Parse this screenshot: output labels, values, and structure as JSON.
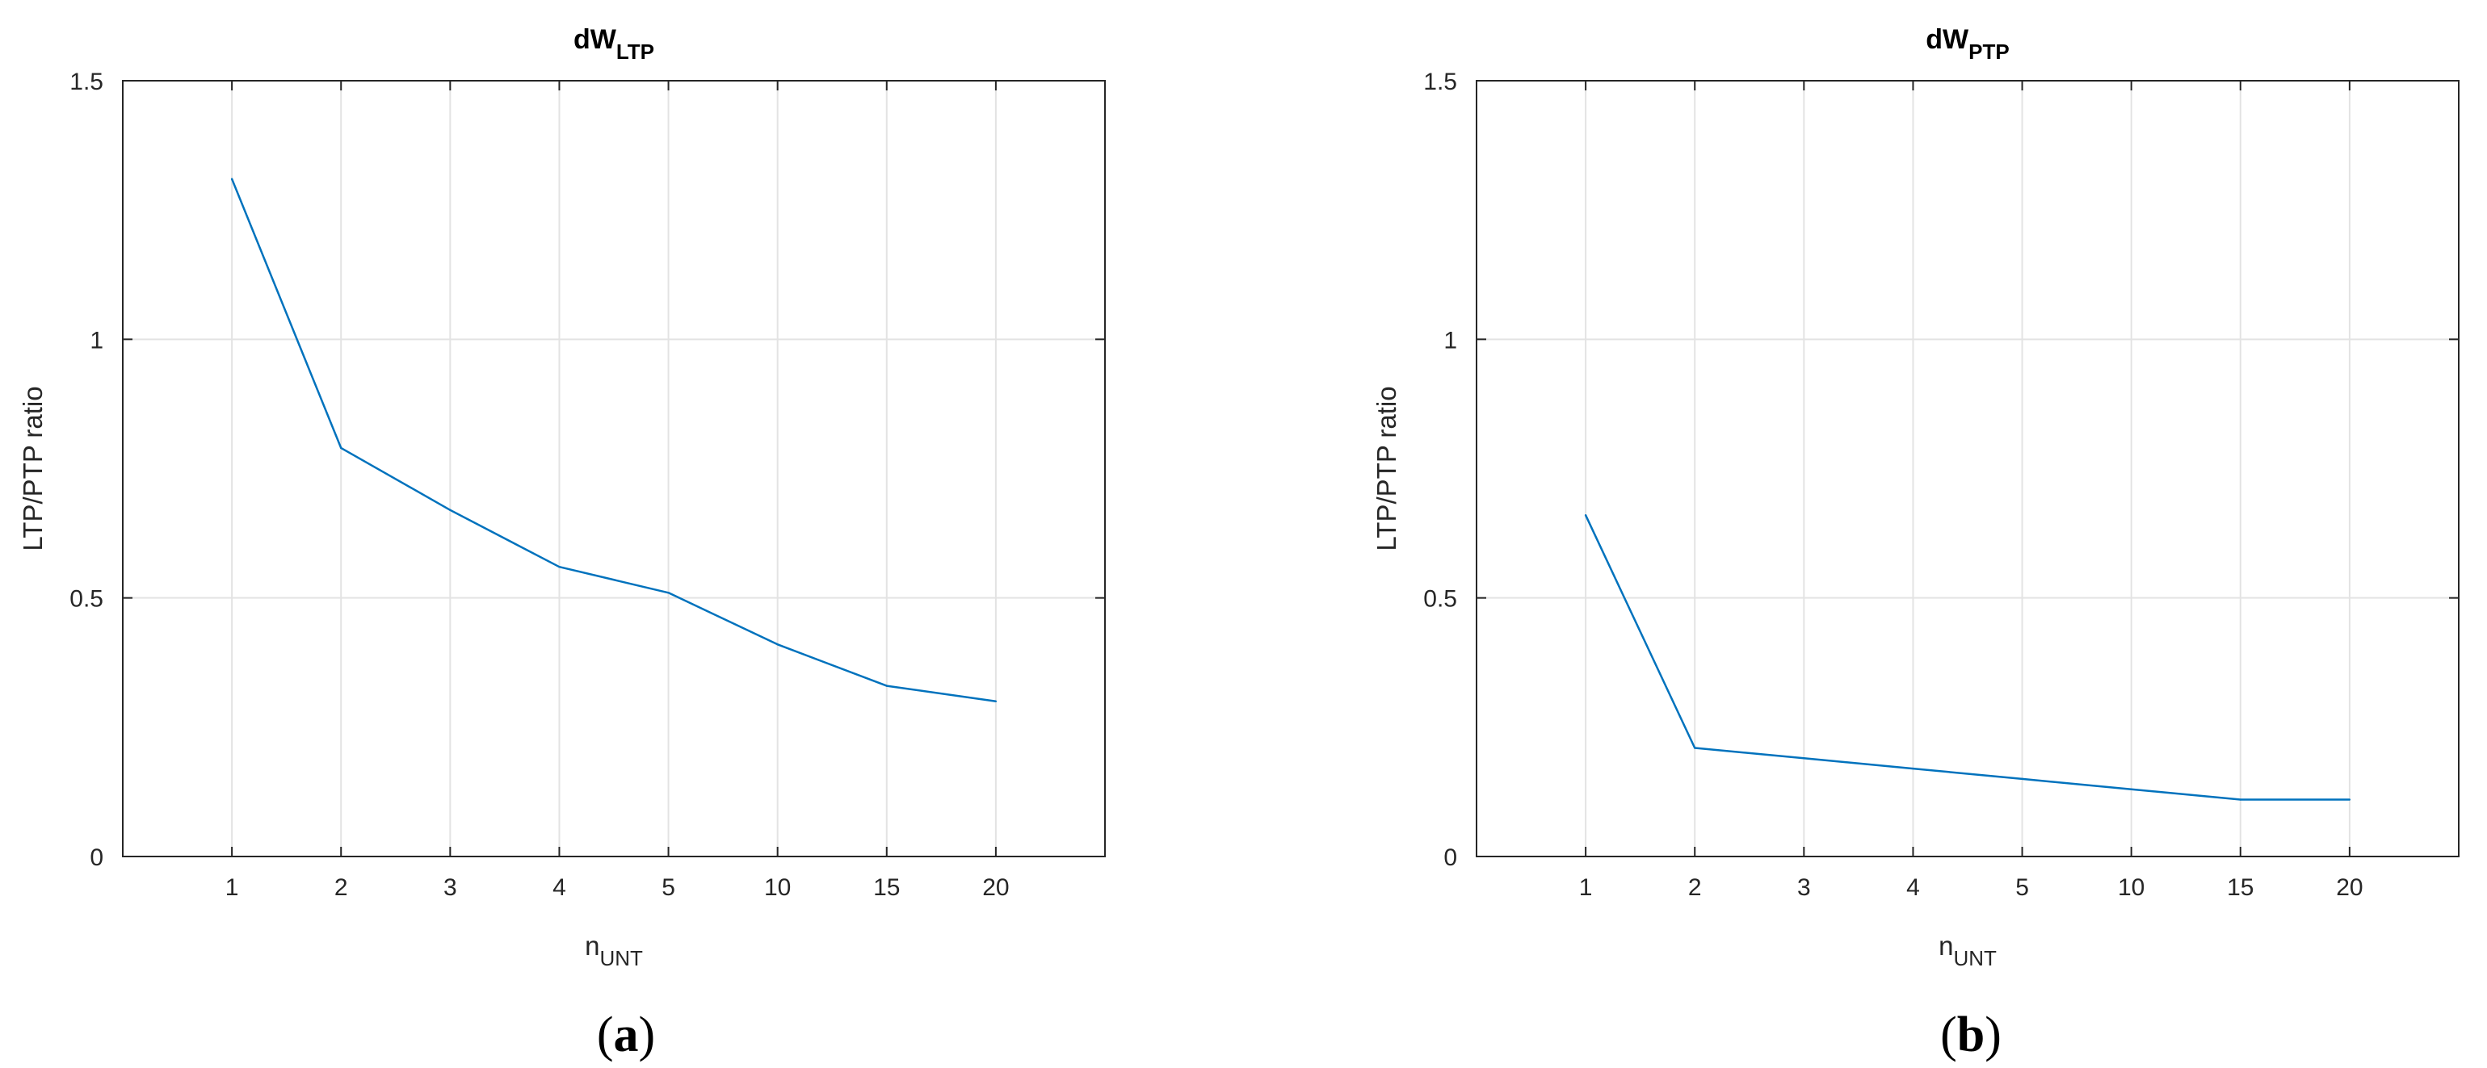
{
  "chart_data": [
    {
      "type": "line",
      "panel_label": "a",
      "title": {
        "main": "dW",
        "sub": "LTP"
      },
      "xlabel": {
        "main": "n",
        "sub": "UNT"
      },
      "ylabel": "LTP/PTP ratio",
      "categories": [
        "1",
        "2",
        "3",
        "4",
        "5",
        "10",
        "15",
        "20"
      ],
      "values": [
        1.31,
        0.79,
        0.67,
        0.56,
        0.51,
        0.41,
        0.33,
        0.3
      ],
      "ylim": [
        0,
        1.5
      ],
      "yticks": [
        0,
        0.5,
        1,
        1.5
      ],
      "ytick_labels": [
        "0",
        "0.5",
        "1",
        "1.5"
      ],
      "grid": true,
      "line_color": "#0072BD"
    },
    {
      "type": "line",
      "panel_label": "b",
      "title": {
        "main": "dW",
        "sub": "PTP"
      },
      "xlabel": {
        "main": "n",
        "sub": "UNT"
      },
      "ylabel": "LTP/PTP ratio",
      "categories": [
        "1",
        "2",
        "3",
        "4",
        "5",
        "10",
        "15",
        "20"
      ],
      "values": [
        0.66,
        0.21,
        0.19,
        0.17,
        0.15,
        0.13,
        0.11,
        0.11
      ],
      "ylim": [
        0,
        1.5
      ],
      "yticks": [
        0,
        0.5,
        1,
        1.5
      ],
      "ytick_labels": [
        "0",
        "0.5",
        "1",
        "1.5"
      ],
      "grid": true,
      "line_color": "#0072BD"
    }
  ]
}
